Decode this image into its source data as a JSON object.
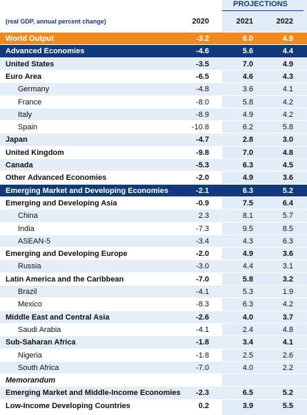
{
  "header": {
    "projections": "PROJECTIONS",
    "subtitle": "(real GDP, annual percent change)",
    "columns": [
      "2020",
      "2021",
      "2022"
    ]
  },
  "table": {
    "rows": [
      [
        "World Output",
        "-3.2",
        "6.0",
        "4.9"
      ],
      [
        "Advanced Economies",
        "-4.6",
        "5.6",
        "4.4"
      ],
      [
        "United States",
        "-3.5",
        "7.0",
        "4.9"
      ],
      [
        "Euro Area",
        "-6.5",
        "4.6",
        "4.3"
      ],
      [
        "Germany",
        "-4.8",
        "3.6",
        "4.1"
      ],
      [
        "France",
        "-8.0",
        "5.8",
        "4.2"
      ],
      [
        "Italy",
        "-8.9",
        "4.9",
        "4.2"
      ],
      [
        "Spain",
        "-10.8",
        "6.2",
        "5.8"
      ],
      [
        "Japan",
        "-4.7",
        "2.8",
        "3.0"
      ],
      [
        "United Kingdom",
        "-9.8",
        "7.0",
        "4.8"
      ],
      [
        "Canada",
        "-5.3",
        "6.3",
        "4.5"
      ],
      [
        "Other Advanced Economies",
        "-2.0",
        "4.9",
        "3.6"
      ],
      [
        "Emerging Market and Developing Economies",
        "-2.1",
        "6.3",
        "5.2"
      ],
      [
        "Emerging and Developing Asia",
        "-0.9",
        "7.5",
        "6.4"
      ],
      [
        "China",
        "2.3",
        "8.1",
        "5.7"
      ],
      [
        "India",
        "-7.3",
        "9.5",
        "8.5"
      ],
      [
        "ASEAN-5",
        "-3.4",
        "4.3",
        "6.3"
      ],
      [
        "Emerging and Developing Europe",
        "-2.0",
        "4.9",
        "3.6"
      ],
      [
        "Russia",
        "-3.0",
        "4.4",
        "3.1"
      ],
      [
        "Latin America and the Caribbean",
        "-7.0",
        "5.8",
        "3.2"
      ],
      [
        "Brazil",
        "-4.1",
        "5.3",
        "1.9"
      ],
      [
        "Mexico",
        "-8.3",
        "6.3",
        "4.2"
      ],
      [
        "Middle East and Central Asia",
        "-2.6",
        "4.0",
        "3.7"
      ],
      [
        "Saudi Arabia",
        "-4.1",
        "2.4",
        "4.8"
      ],
      [
        "Sub-Saharan Africa",
        "-1.8",
        "3.4",
        "4.1"
      ],
      [
        "Nigeria",
        "-1.8",
        "2.5",
        "2.6"
      ],
      [
        "South Africa",
        "-7.0",
        "4.0",
        "2.2"
      ],
      [
        "Memorandum"
      ],
      [
        "Emerging Market and Middle-Income Economies",
        "-2.3",
        "6.5",
        "5.2"
      ],
      [
        "Low-Income Developing Countries",
        "0.2",
        "3.9",
        "5.5"
      ]
    ]
  }
}
